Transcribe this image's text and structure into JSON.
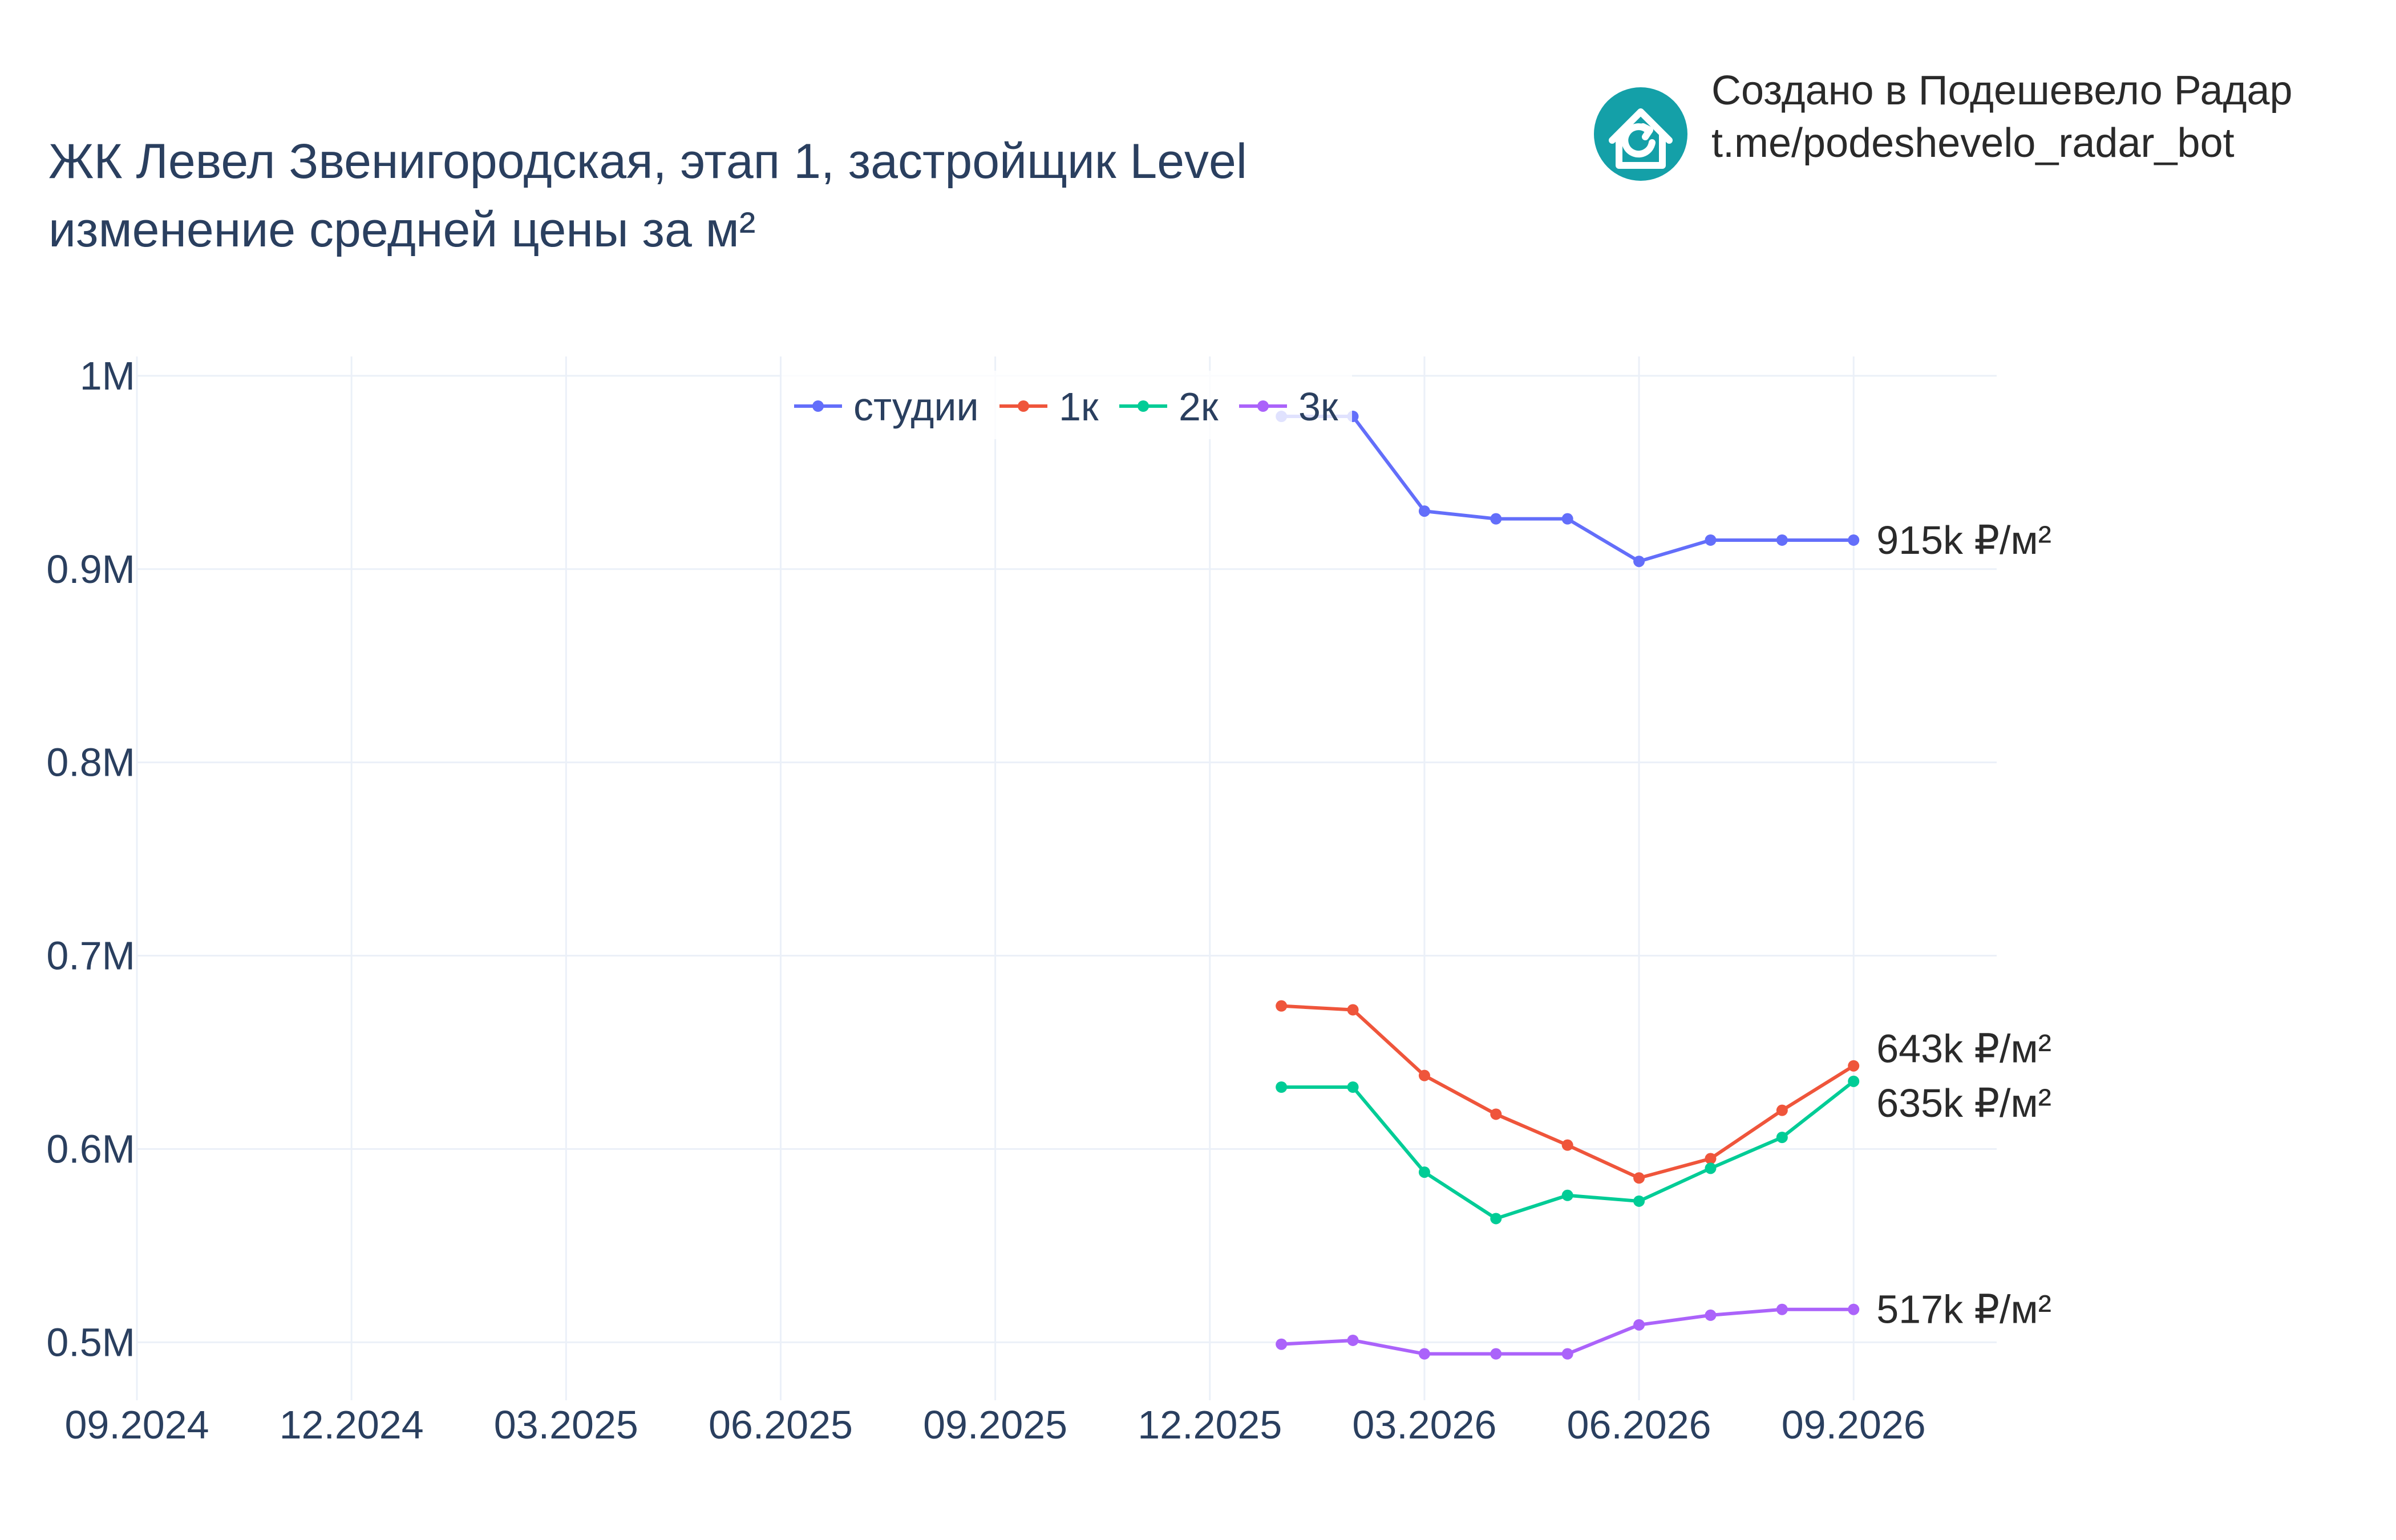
{
  "branding": {
    "line1": "Создано в Подешевело Радар",
    "line2": "t.me/podeshevelo_radar_bot",
    "logo_color": "#14a0a8",
    "logo_icon": "house-refresh-icon"
  },
  "chart_data": {
    "type": "line",
    "title_line1": "ЖК Левел Звенигородская, этап 1, застройщик Level",
    "title_line2": "изменение средней цены за м²",
    "xlabel": "",
    "ylabel": "",
    "x_ticks": [
      "09.2024",
      "12.2024",
      "03.2025",
      "06.2025",
      "09.2025",
      "12.2025",
      "03.2026",
      "06.2026",
      "09.2026"
    ],
    "x_range": [
      "2024-09",
      "2026-11"
    ],
    "y_ticks": [
      {
        "value": 1000000,
        "label": "1M"
      },
      {
        "value": 900000,
        "label": "0.9M"
      },
      {
        "value": 800000,
        "label": "0.8M"
      },
      {
        "value": 700000,
        "label": "0.7M"
      },
      {
        "value": 600000,
        "label": "0.6M"
      },
      {
        "value": 500000,
        "label": "0.5M"
      }
    ],
    "ylim": [
      470000,
      1010000
    ],
    "grid": true,
    "legend_position": "top-center",
    "x": [
      "2026-01",
      "2026-02",
      "2026-03",
      "2026-04",
      "2026-05",
      "2026-06",
      "2026-07",
      "2026-08",
      "2026-09"
    ],
    "series": [
      {
        "name": "студии",
        "color": "#636efa",
        "values": [
          979000,
          979000,
          930000,
          926000,
          926000,
          904000,
          915000,
          915000,
          915000
        ],
        "end_label": "915k ₽/м²"
      },
      {
        "name": "1к",
        "color": "#ef553b",
        "values": [
          674000,
          672000,
          638000,
          618000,
          602000,
          585000,
          595000,
          620000,
          643000
        ],
        "end_label": "643k ₽/м²"
      },
      {
        "name": "2к",
        "color": "#00cc96",
        "values": [
          632000,
          632000,
          588000,
          564000,
          576000,
          573000,
          590000,
          606000,
          635000
        ],
        "end_label": "635k ₽/м²"
      },
      {
        "name": "3к",
        "color": "#ab63fa",
        "values": [
          499000,
          501000,
          494000,
          494000,
          494000,
          509000,
          514000,
          517000,
          517000
        ],
        "end_label": "517k ₽/м²"
      }
    ]
  }
}
